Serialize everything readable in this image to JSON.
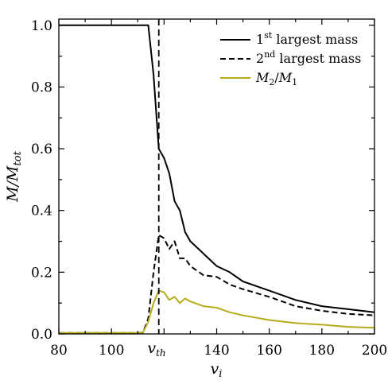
{
  "chart_data": {
    "type": "line",
    "xlabel": "v_i",
    "ylabel": "M/M_tot",
    "xlim": [
      80,
      200
    ],
    "ylim": [
      0,
      1.02
    ],
    "xticks": [
      80,
      100,
      140,
      160,
      180,
      200
    ],
    "yticks": [
      0.0,
      0.2,
      0.4,
      0.6,
      0.8,
      1.0
    ],
    "xtick_labels": [
      "80",
      "100",
      "140",
      "160",
      "180",
      "200"
    ],
    "ytick_labels": [
      "0.0",
      "0.2",
      "0.4",
      "0.6",
      "0.8",
      "1.0"
    ],
    "vline": {
      "x": 118,
      "label": "v_th",
      "style": "dashed"
    },
    "legend_position": "top-right",
    "grid": false,
    "series": [
      {
        "name_parts": [
          "1",
          "st",
          " largest mass"
        ],
        "style": "solid",
        "color": "#000000",
        "x": [
          80,
          90,
          100,
          110,
          112,
          114,
          116,
          118,
          120,
          122,
          124,
          126,
          128,
          130,
          135,
          140,
          145,
          150,
          160,
          170,
          180,
          190,
          200
        ],
        "y": [
          1.0,
          1.0,
          1.0,
          1.0,
          1.0,
          1.0,
          0.84,
          0.6,
          0.57,
          0.52,
          0.43,
          0.4,
          0.33,
          0.3,
          0.26,
          0.22,
          0.2,
          0.17,
          0.14,
          0.11,
          0.09,
          0.08,
          0.07
        ]
      },
      {
        "name_parts": [
          "2",
          "nd",
          " largest mass"
        ],
        "style": "dashed",
        "color": "#000000",
        "x": [
          80,
          90,
          100,
          110,
          112,
          114,
          116,
          118,
          120,
          122,
          124,
          126,
          128,
          130,
          135,
          140,
          145,
          150,
          160,
          170,
          180,
          190,
          200
        ],
        "y": [
          0.003,
          0.003,
          0.003,
          0.003,
          0.005,
          0.05,
          0.2,
          0.32,
          0.31,
          0.275,
          0.3,
          0.245,
          0.245,
          0.22,
          0.19,
          0.185,
          0.16,
          0.145,
          0.12,
          0.09,
          0.075,
          0.065,
          0.06
        ]
      },
      {
        "name_parts": [
          "M",
          "2",
          "/",
          "M",
          "1"
        ],
        "style": "solid",
        "color": "#b5ac1c",
        "x": [
          80,
          90,
          100,
          110,
          112,
          114,
          116,
          118,
          120,
          122,
          124,
          126,
          128,
          130,
          135,
          140,
          145,
          150,
          160,
          170,
          180,
          190,
          200
        ],
        "y": [
          0.003,
          0.003,
          0.003,
          0.003,
          0.005,
          0.04,
          0.1,
          0.14,
          0.135,
          0.11,
          0.12,
          0.1,
          0.115,
          0.105,
          0.09,
          0.085,
          0.07,
          0.06,
          0.045,
          0.035,
          0.03,
          0.023,
          0.02
        ]
      }
    ]
  }
}
